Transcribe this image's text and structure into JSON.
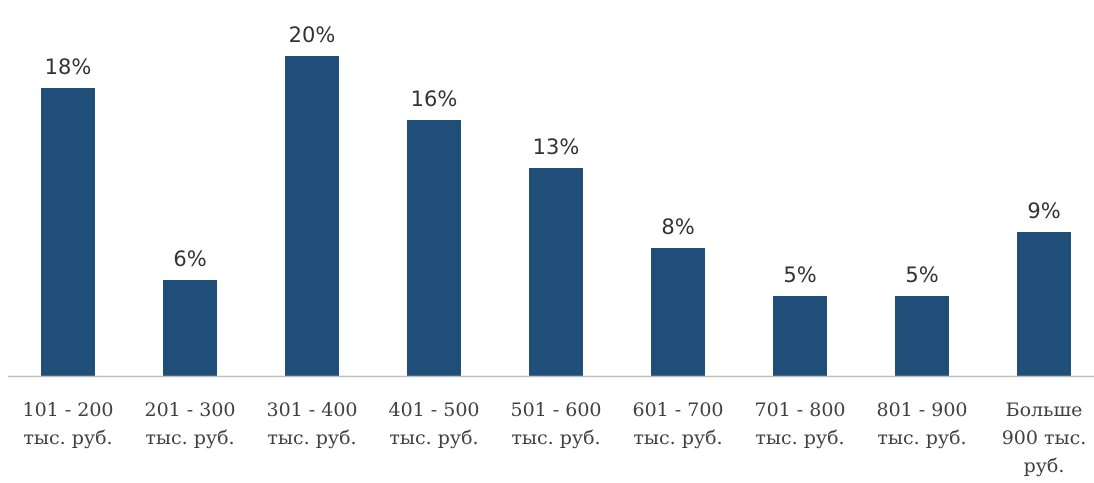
{
  "chart_data": {
    "type": "bar",
    "categories": [
      [
        "101 - 200",
        "тыс. руб."
      ],
      [
        "201 - 300",
        "тыс. руб."
      ],
      [
        "301 - 400",
        "тыс. руб."
      ],
      [
        "401 - 500",
        "тыс. руб."
      ],
      [
        "501 - 600",
        "тыс. руб."
      ],
      [
        "601 - 700",
        "тыс. руб."
      ],
      [
        "701 - 800",
        "тыс. руб."
      ],
      [
        "801 - 900",
        "тыс. руб."
      ],
      [
        "Больше",
        "900 тыс.",
        "руб."
      ]
    ],
    "values": [
      18,
      6,
      20,
      16,
      13,
      8,
      5,
      5,
      9
    ],
    "data_labels": [
      "18%",
      "6%",
      "20%",
      "16%",
      "13%",
      "8%",
      "5%",
      "5%",
      "9%"
    ],
    "value_unit": "%",
    "ylim": [
      0,
      20
    ],
    "grid": false,
    "legend": "none",
    "bar_color": "#1f4e79",
    "axis_color": "#bfbfbf",
    "label_color": "#333333"
  }
}
